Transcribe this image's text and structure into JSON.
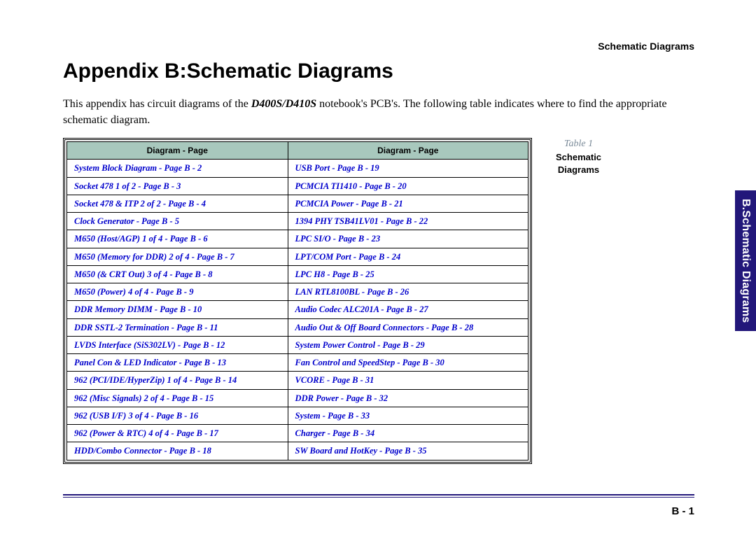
{
  "header": {
    "right": "Schematic  Diagrams"
  },
  "title": "Appendix B:Schematic Diagrams",
  "intro": {
    "before": "This appendix has circuit diagrams of the ",
    "model": "D400S/D410S",
    "after": " notebook's PCB's. The following table indicates where to find the appropriate schematic diagram."
  },
  "table": {
    "header_bg": "#a8c8bd",
    "link_color": "#0000cc",
    "col_header": "Diagram - Page",
    "rows": [
      [
        "System Block Diagram - Page  B - 2",
        "USB Port - Page  B - 19"
      ],
      [
        "Socket 478 1 of 2 - Page  B - 3",
        "PCMCIA TI1410 - Page  B - 20"
      ],
      [
        "Socket 478 & ITP 2 of 2 - Page  B - 4",
        "PCMCIA Power - Page  B - 21"
      ],
      [
        "Clock Generator - Page  B - 5",
        "1394 PHY TSB41LV01 - Page  B - 22"
      ],
      [
        "M650 (Host/AGP) 1 of 4 - Page  B - 6",
        "LPC SI/O - Page  B - 23"
      ],
      [
        "M650 (Memory for DDR) 2 of 4 - Page  B - 7",
        "LPT/COM Port - Page  B - 24"
      ],
      [
        "M650 (& CRT Out) 3 of 4 - Page  B - 8",
        "LPC H8 - Page  B - 25"
      ],
      [
        "M650 (Power) 4 of 4 - Page  B - 9",
        "LAN RTL8100BL - Page  B - 26"
      ],
      [
        "DDR Memory DIMM - Page  B - 10",
        "Audio Codec ALC201A - Page  B - 27"
      ],
      [
        "DDR SSTL-2 Termination - Page  B - 11",
        "Audio Out & Off Board Connectors - Page  B - 28"
      ],
      [
        "LVDS Interface (SiS302LV) - Page  B - 12",
        "System Power Control - Page  B - 29"
      ],
      [
        "Panel Con & LED Indicator - Page  B - 13",
        "Fan Control and SpeedStep - Page  B - 30"
      ],
      [
        "962 (PCI/IDE/HyperZip) 1 of 4 - Page  B - 14",
        "VCORE - Page  B - 31"
      ],
      [
        "962 (Misc Signals) 2 of 4 - Page  B - 15",
        "DDR Power - Page  B - 32"
      ],
      [
        "962 (USB I/F) 3 of 4 - Page  B - 16",
        "System - Page  B - 33"
      ],
      [
        "962 (Power & RTC) 4 of 4 - Page  B - 17",
        "Charger - Page  B - 34"
      ],
      [
        "HDD/Combo Connector - Page  B - 18",
        "SW Board and HotKey - Page  B - 35"
      ]
    ]
  },
  "caption": {
    "label": "Table  1",
    "name1": "Schematic",
    "name2": "Diagrams"
  },
  "side_tab": "B.Schematic Diagrams",
  "footer": {
    "page": "B  -  1",
    "line_color": "#22177a"
  }
}
